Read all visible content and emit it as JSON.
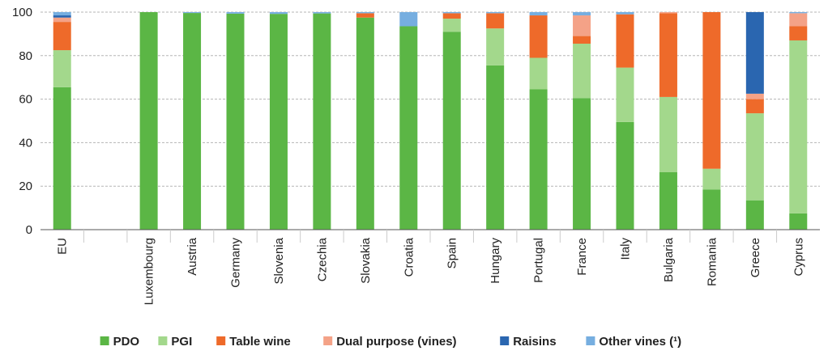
{
  "chart_data": {
    "type": "bar",
    "stacked": true,
    "ylim": [
      0,
      100
    ],
    "yticks": [
      0,
      20,
      40,
      60,
      80,
      100
    ],
    "grid": true,
    "legend_position": "bottom",
    "categories": [
      "EU",
      "",
      "Luxembourg",
      "Austria",
      "Germany",
      "Slovenia",
      "Czechia",
      "Slovakia",
      "Croatia",
      "Spain",
      "Hungary",
      "Portugal",
      "France",
      "Italy",
      "Bulgaria",
      "Romania",
      "Greece",
      "Cyprus"
    ],
    "series": [
      {
        "name": "PDO",
        "color": "#5bb645",
        "values": [
          65.5,
          null,
          100,
          99.6,
          99.3,
          99.2,
          99.4,
          97.5,
          93.5,
          91,
          75.5,
          64.5,
          60.5,
          49.5,
          26.5,
          18.5,
          13.5,
          7.5
        ]
      },
      {
        "name": "PGI",
        "color": "#a3d88c",
        "values": [
          17,
          null,
          0,
          0,
          0,
          0,
          0,
          0,
          0,
          6,
          17,
          14.5,
          25,
          25,
          34.5,
          9.5,
          40,
          79.5
        ]
      },
      {
        "name": "Table wine",
        "color": "#ee6a2a",
        "values": [
          13,
          null,
          0,
          0,
          0,
          0,
          0,
          2,
          0,
          2.5,
          7,
          19.5,
          3.5,
          24.5,
          38.5,
          72,
          6.5,
          6.5
        ]
      },
      {
        "name": "Dual purpose (vines)",
        "color": "#f4a287",
        "values": [
          2,
          null,
          0,
          0,
          0,
          0,
          0,
          0,
          0,
          0,
          0,
          0,
          9.5,
          0,
          0.5,
          0,
          2.5,
          6
        ]
      },
      {
        "name": "Raisins",
        "color": "#2a66b0",
        "values": [
          1,
          null,
          0,
          0,
          0,
          0,
          0,
          0,
          0,
          0,
          0,
          0,
          0,
          0,
          0,
          0,
          37.5,
          0
        ]
      },
      {
        "name": "Other vines (¹)",
        "color": "#76aee0",
        "values": [
          1.5,
          null,
          0,
          0.4,
          0.7,
          0.8,
          0.6,
          0.5,
          6.5,
          0.5,
          0.5,
          1.5,
          1.5,
          1,
          0,
          0,
          0,
          0.5
        ]
      }
    ]
  }
}
